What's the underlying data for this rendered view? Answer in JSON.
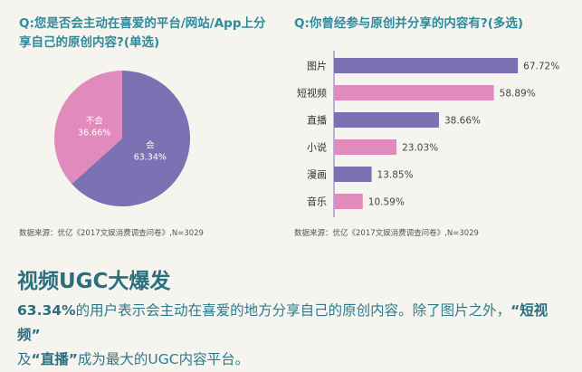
{
  "chart_data": [
    {
      "type": "pie",
      "title": "Q:您是否会主动在喜爱的平台/网站/App上分享自己的原创内容?(单选)",
      "slices": [
        {
          "label": "会",
          "value": 63.34,
          "display": "63.34%",
          "color": "#7b72b4"
        },
        {
          "label": "不会",
          "value": 36.66,
          "display": "36.66%",
          "color": "#e08bbb"
        }
      ],
      "source": "数据来源：优亿《2017文娱消费调查问卷》,N=3029"
    },
    {
      "type": "bar",
      "orientation": "horizontal",
      "title": "Q:你曾经参与原创并分享的内容有?(多选)",
      "categories": [
        "图片",
        "短视频",
        "直播",
        "小说",
        "漫画",
        "音乐"
      ],
      "values": [
        67.72,
        58.89,
        38.66,
        23.03,
        13.85,
        10.59
      ],
      "labels": [
        "67.72%",
        "58.89%",
        "38.66%",
        "23.03%",
        "13.85%",
        "10.59%"
      ],
      "colors": [
        "#7b72b4",
        "#e08bbb"
      ],
      "source": "数据来源：优亿《2017文娱消费调查问卷》,N=3029"
    }
  ],
  "headline": "视频UGC大爆发",
  "summary": {
    "p1": "63.34%",
    "p2": "的用户表示会主动在喜爱的地方分享自己的原创内容。除了图片之外，",
    "p3": "“短视频”",
    "p4": "及",
    "p5": "“直播”",
    "p6": "成为最大的UGC内容平台。"
  }
}
